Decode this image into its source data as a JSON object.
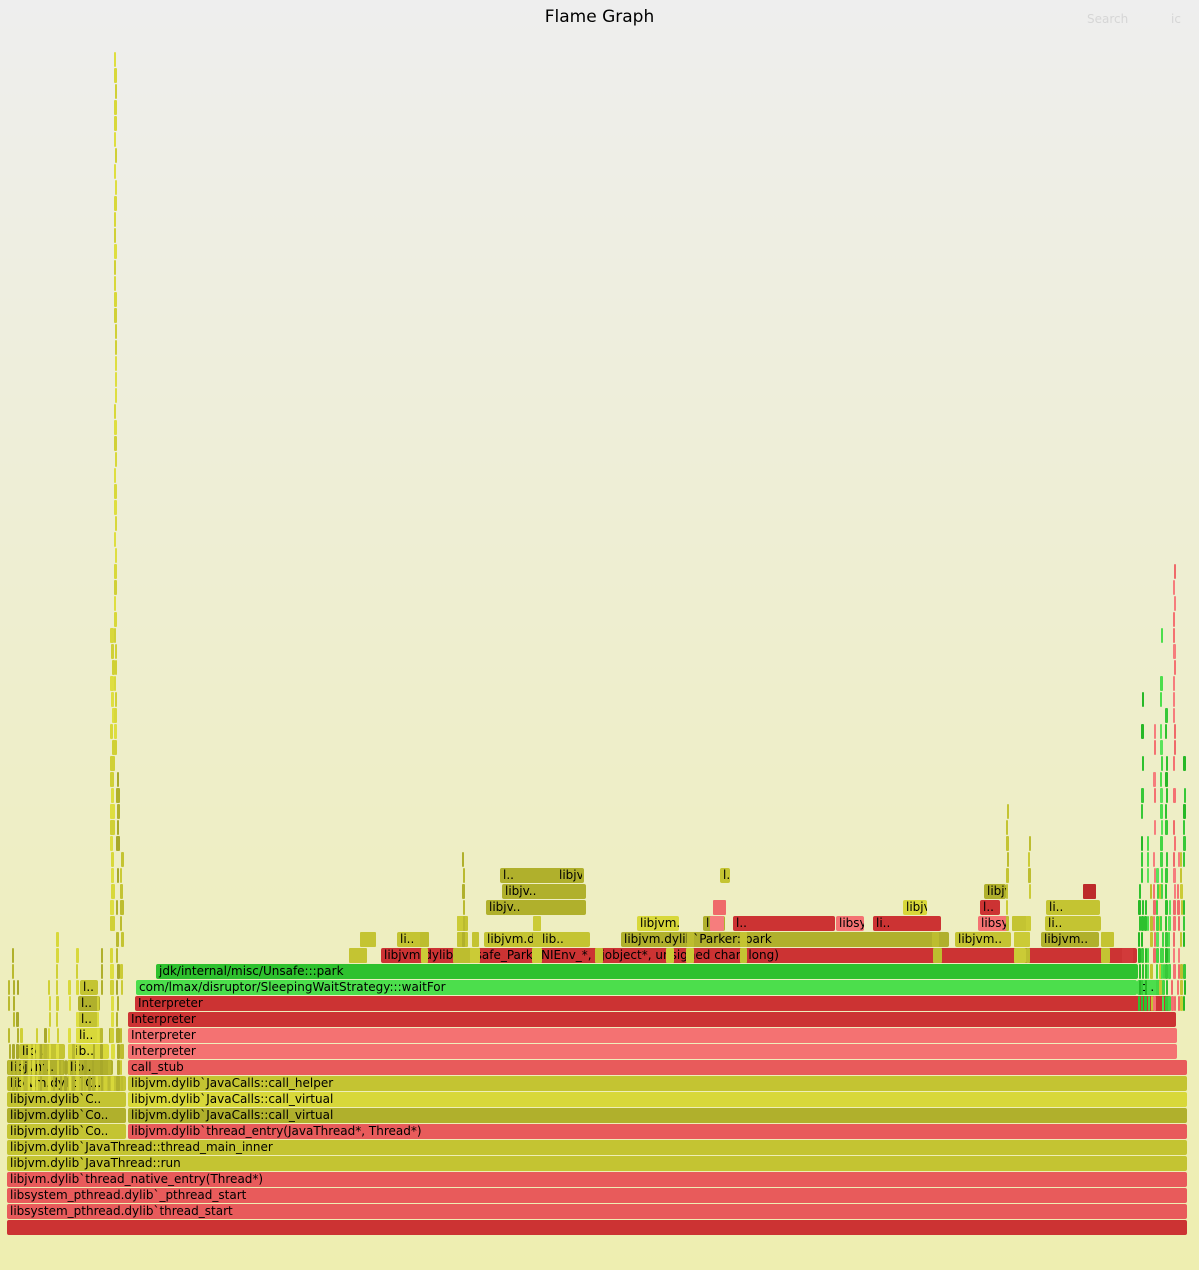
{
  "header": {
    "title": "Flame Graph",
    "search_label": "Search",
    "ic_label": "ic"
  },
  "palette": {
    "red_dark": "#cc3333",
    "red": "#e85b5b",
    "red_light": "#f47272",
    "green": "#2ec12e",
    "green_light": "#4cde4c",
    "olive": "#b0b02c",
    "yellow": "#d8d83a",
    "yellow_mid": "#c4c432"
  },
  "frames": [
    {
      "label": "",
      "color": "red_dark"
    },
    {
      "label": "libsystem_pthread.dylib`thread_start",
      "color": "red"
    },
    {
      "label": "libsystem_pthread.dylib`_pthread_start",
      "color": "red"
    },
    {
      "label": "libjvm.dylib`thread_native_entry(Thread*)",
      "color": "red"
    },
    {
      "label": "libjvm.dylib`JavaThread::run",
      "color": "yellow_mid"
    },
    {
      "label": "libjvm.dylib`JavaThread::thread_main_inner",
      "color": "yellow_mid"
    },
    {
      "label": "libjvm.dylib`Co..",
      "color": "yellow_mid"
    },
    {
      "label": "libjvm.dylib`thread_entry(JavaThread*, Thread*)",
      "color": "red"
    },
    {
      "label": "libjvm.dylib`Co..",
      "color": "olive"
    },
    {
      "label": "libjvm.dylib`JavaCalls::call_virtual",
      "color": "olive"
    },
    {
      "label": "libjvm.dylib`C..",
      "color": "yellow_mid"
    },
    {
      "label": "libjvm.dylib`JavaCalls::call_virtual",
      "color": "yellow"
    },
    {
      "label": "libjvm.dylib`C..",
      "color": "yellow_mid"
    },
    {
      "label": "libjvm.dylib`JavaCalls::call_helper",
      "color": "yellow_mid"
    },
    {
      "label": "libjvm..",
      "color": "olive"
    },
    {
      "label": "libj..",
      "color": "olive"
    },
    {
      "label": "call_stub",
      "color": "red"
    },
    {
      "label": "libj..",
      "color": "yellow_mid"
    },
    {
      "label": "lib..",
      "color": "yellow"
    },
    {
      "label": "Interpreter",
      "color": "red_light"
    },
    {
      "label": "li..",
      "color": "yellow"
    },
    {
      "label": "Interpreter",
      "color": "red_light"
    },
    {
      "label": "l..",
      "color": "yellow_mid"
    },
    {
      "label": "Interpreter",
      "color": "red_dark"
    },
    {
      "label": "l..",
      "color": "olive"
    },
    {
      "label": "Interpreter",
      "color": "red_dark"
    },
    {
      "label": "l..",
      "color": "yellow_mid"
    },
    {
      "label": "com/lmax/disruptor/SleepingWaitStrategy:::waitFor",
      "color": "green_light"
    },
    {
      "label": "c..",
      "color": "green_light"
    },
    {
      "label": "jdk/internal/misc/Unsafe:::park",
      "color": "green"
    },
    {
      "label": "libjvm.dylib`Unsafe_Park(JNIEnv_*, _jobject*, unsigned char, long)",
      "color": "red_dark"
    },
    {
      "label": "li..",
      "color": "yellow_mid"
    },
    {
      "label": "libjvm.dylib..",
      "color": "yellow_mid"
    },
    {
      "label": "libjvm.dylib`Parker::park",
      "color": "olive"
    },
    {
      "label": "libjvm..",
      "color": "yellow_mid"
    },
    {
      "label": "libjvm..",
      "color": "olive"
    },
    {
      "label": "libjvm.dylib..",
      "color": "yellow"
    },
    {
      "label": "lib..",
      "color": "olive"
    },
    {
      "label": "l..",
      "color": "red_dark"
    },
    {
      "label": "libsystem_ke..",
      "color": "red_light"
    },
    {
      "label": "li..",
      "color": "red_dark"
    },
    {
      "label": "libsyst..",
      "color": "red_light"
    },
    {
      "label": "li..",
      "color": "yellow_mid"
    },
    {
      "label": "libjv..",
      "color": "olive"
    },
    {
      "label": "libjvm.dylib..",
      "color": "yellow"
    },
    {
      "label": "l..",
      "color": "red_dark"
    },
    {
      "label": "li..",
      "color": "yellow_mid"
    },
    {
      "label": "libjv..",
      "color": "olive"
    },
    {
      "label": "libjvm.dy..",
      "color": "olive"
    },
    {
      "label": "l..",
      "color": "olive"
    },
    {
      "label": "libjvm.dy..",
      "color": "olive"
    },
    {
      "label": "l..",
      "color": "yellow_mid"
    },
    {
      "label": "l..",
      "color": "red_light"
    }
  ]
}
